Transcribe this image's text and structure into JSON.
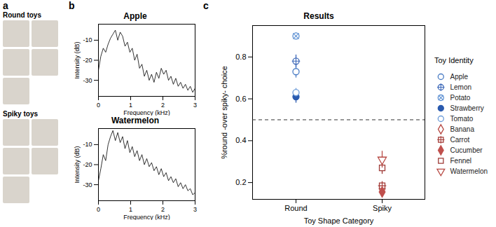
{
  "chart_data": [
    {
      "type": "image_grid",
      "panel_label": "a",
      "groups": [
        {
          "title": "Round toys",
          "count": 5
        },
        {
          "title": "Spiky toys",
          "count": 5
        }
      ]
    },
    {
      "type": "line",
      "panel_label": "b",
      "title": "Apple",
      "color": "#000000",
      "x_label": "Frequency (kHz)",
      "y_label": "Intensity (dB)",
      "x": [
        0,
        0.075,
        0.15,
        0.225,
        0.3,
        0.375,
        0.45,
        0.525,
        0.6,
        0.675,
        0.75,
        0.825,
        0.9,
        0.975,
        1.05,
        1.125,
        1.2,
        1.275,
        1.35,
        1.425,
        1.5,
        1.575,
        1.65,
        1.725,
        1.8,
        1.875,
        1.95,
        2.025,
        2.1,
        2.175,
        2.25,
        2.325,
        2.4,
        2.475,
        2.55,
        2.625,
        2.7,
        2.775,
        2.85,
        2.925,
        3
      ],
      "values": [
        -25,
        -18,
        -14,
        -16,
        -12,
        -9,
        -7,
        -5,
        -10,
        -6,
        -8,
        -13,
        -11,
        -16,
        -14,
        -20,
        -17,
        -24,
        -22,
        -28,
        -25,
        -30,
        -27,
        -31,
        -26,
        -29,
        -24,
        -27,
        -25,
        -30,
        -28,
        -32,
        -29,
        -33,
        -31,
        -34,
        -32,
        -35,
        -33,
        -36,
        -34
      ],
      "xlim": [
        0,
        3
      ],
      "xticks": [
        0,
        1,
        2,
        3
      ],
      "ylim": [
        -38,
        -2
      ],
      "yticks": [
        -30,
        -20,
        -10
      ]
    },
    {
      "type": "line",
      "title": "Watermelon",
      "color": "#000000",
      "x_label": "Frequency (kHz)",
      "y_label": "Intensity (dB)",
      "x": [
        0,
        0.075,
        0.15,
        0.225,
        0.3,
        0.375,
        0.45,
        0.525,
        0.6,
        0.675,
        0.75,
        0.825,
        0.9,
        0.975,
        1.05,
        1.125,
        1.2,
        1.275,
        1.35,
        1.425,
        1.5,
        1.575,
        1.65,
        1.725,
        1.8,
        1.875,
        1.95,
        2.025,
        2.1,
        2.175,
        2.25,
        2.325,
        2.4,
        2.475,
        2.55,
        2.625,
        2.7,
        2.775,
        2.85,
        2.925,
        3
      ],
      "values": [
        -28,
        -22,
        -15,
        -18,
        -10,
        -6,
        -3,
        -8,
        -4,
        -9,
        -6,
        -12,
        -8,
        -14,
        -11,
        -16,
        -13,
        -18,
        -15,
        -20,
        -17,
        -21,
        -19,
        -23,
        -21,
        -25,
        -22,
        -26,
        -24,
        -28,
        -26,
        -29,
        -27,
        -31,
        -29,
        -32,
        -30,
        -33,
        -32,
        -35,
        -34
      ],
      "xlim": [
        0,
        3
      ],
      "xticks": [
        0,
        1,
        2,
        3
      ],
      "ylim": [
        -38,
        -2
      ],
      "yticks": [
        -30,
        -20,
        -10
      ]
    },
    {
      "type": "scatter",
      "panel_label": "c",
      "title": "Results",
      "x_label": "Toy Shape Category",
      "y_label": "%round -over spiky- choice",
      "categories": [
        "Round",
        "Spiky"
      ],
      "ylim": [
        0.12,
        0.95
      ],
      "yticks": [
        0.2,
        0.4,
        0.6,
        0.8
      ],
      "reference_line": {
        "value": 0.5,
        "line_style": "dashed"
      },
      "legend": "right",
      "legend_title": "Toy Identity",
      "series": [
        {
          "name": "Apple",
          "color": "#4a7cc4",
          "marker": "circle",
          "values": [
            0.73,
            null
          ],
          "errors": [
            0.03,
            null
          ]
        },
        {
          "name": "Lemon",
          "color": "#3d68b8",
          "marker": "circle_plus",
          "values": [
            0.78,
            null
          ],
          "errors": [
            0.03,
            null
          ]
        },
        {
          "name": "Potato",
          "color": "#5a8ed2",
          "marker": "circle_x",
          "values": [
            0.9,
            null
          ],
          "errors": [
            0.015,
            null
          ]
        },
        {
          "name": "Strawberry",
          "color": "#2a5aae",
          "marker": "circle_filled",
          "values": [
            0.61,
            null
          ],
          "errors": [
            0.03,
            null
          ]
        },
        {
          "name": "Tomato",
          "color": "#6b9bd8",
          "marker": "circle",
          "values": [
            0.63,
            null
          ],
          "errors": [
            0.02,
            null
          ]
        },
        {
          "name": "Banana",
          "color": "#b5453f",
          "marker": "diamond",
          "values": [
            null,
            0.17
          ],
          "errors": [
            null,
            0.02
          ]
        },
        {
          "name": "Carrot",
          "color": "#a33a36",
          "marker": "square_plus",
          "values": [
            null,
            0.185
          ],
          "errors": [
            null,
            0.02
          ]
        },
        {
          "name": "Cucumber",
          "color": "#c0504d",
          "marker": "diamond_filled",
          "values": [
            null,
            0.155
          ],
          "errors": [
            null,
            0.02
          ]
        },
        {
          "name": "Fennel",
          "color": "#9e3b37",
          "marker": "square",
          "values": [
            null,
            0.27
          ],
          "errors": [
            null,
            0.03
          ]
        },
        {
          "name": "Watermelon",
          "color": "#b84a44",
          "marker": "triangle_down",
          "values": [
            null,
            0.31
          ],
          "errors": [
            null,
            0.04
          ]
        }
      ]
    }
  ]
}
